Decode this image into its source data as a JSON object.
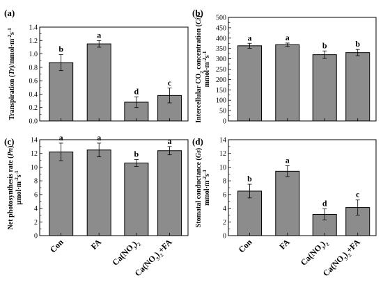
{
  "colors": {
    "bar": "#8c8c8c",
    "axis": "#000000",
    "background": "#ffffff"
  },
  "chart_data": [
    {
      "panel": "(a)",
      "type": "bar",
      "categories": [
        "Con",
        "FA",
        "Ca(NO3)2",
        "Ca(NO3)2+FA"
      ],
      "values": [
        0.87,
        1.15,
        0.28,
        0.38
      ],
      "errors": [
        0.12,
        0.05,
        0.08,
        0.11
      ],
      "letters": [
        "b",
        "a",
        "d",
        "c"
      ],
      "ylabel_parts": [
        "Transpiration (",
        "Tr",
        ")/mmol·m",
        "-2",
        "s",
        "-1"
      ],
      "ylim": [
        0,
        1.4
      ],
      "yticks": [
        "0.0",
        "0.2",
        "0.4",
        "0.6",
        "0.8",
        "1.0",
        "1.2",
        "1.4"
      ],
      "grid": false
    },
    {
      "panel": "(b)",
      "type": "bar",
      "categories": [
        "Con",
        "FA",
        "Ca(NO3)2",
        "Ca(NO3)2+FA"
      ],
      "values": [
        363,
        368,
        320,
        330
      ],
      "errors": [
        12,
        8,
        18,
        15
      ],
      "letters": [
        "a",
        "a",
        "b",
        "b"
      ],
      "ylabel_line1_parts": [
        "Intercellular CO",
        "2",
        " concentration (",
        "Ci",
        ")"
      ],
      "ylabel_line2_parts": [
        "mmol·m",
        "-2",
        "s",
        "-1"
      ],
      "ylim": [
        0,
        500
      ],
      "yticks": [
        "0",
        "50",
        "100",
        "150",
        "200",
        "250",
        "300",
        "350",
        "400",
        "450",
        "500"
      ],
      "grid": false
    },
    {
      "panel": "(c)",
      "type": "bar",
      "categories": [
        "Con",
        "FA",
        "Ca(NO3)2",
        "Ca(NO3)2+FA"
      ],
      "values": [
        12.2,
        12.5,
        10.6,
        12.4
      ],
      "errors": [
        1.3,
        1.0,
        0.5,
        0.6
      ],
      "letters": [
        "a",
        "a",
        "b",
        "a"
      ],
      "ylabel_line1_parts": [
        "Net photosynthesis rate (",
        "Pn",
        ")"
      ],
      "ylabel_line2_parts": [
        "μmol·m",
        "-2",
        "s",
        "-1"
      ],
      "ylim": [
        0,
        14
      ],
      "yticks": [
        "0",
        "2",
        "4",
        "6",
        "8",
        "10",
        "12",
        "14"
      ],
      "grid": false
    },
    {
      "panel": "(d)",
      "type": "bar",
      "categories": [
        "Con",
        "FA",
        "Ca(NO3)2",
        "Ca(NO3)2+FA"
      ],
      "values": [
        6.5,
        9.4,
        3.1,
        4.1
      ],
      "errors": [
        1.0,
        0.8,
        0.8,
        1.1
      ],
      "letters": [
        "b",
        "a",
        "d",
        "c"
      ],
      "ylabel_line1_parts": [
        "Stomatal conductance (",
        "Gs",
        ")"
      ],
      "ylabel_line2_parts": [
        "mmol·m",
        "-2",
        "s",
        "-1"
      ],
      "ylim": [
        0,
        14
      ],
      "yticks": [
        "0",
        "2",
        "4",
        "6",
        "8",
        "10",
        "12",
        "14"
      ],
      "grid": false
    }
  ],
  "x_category_labels": {
    "con": "Con",
    "fa": "FA",
    "ca_base": "Ca(NO",
    "ca_sub3": "3",
    "ca_close": ")",
    "ca_sub2": "2",
    "cafa_suffix": "+FA"
  }
}
